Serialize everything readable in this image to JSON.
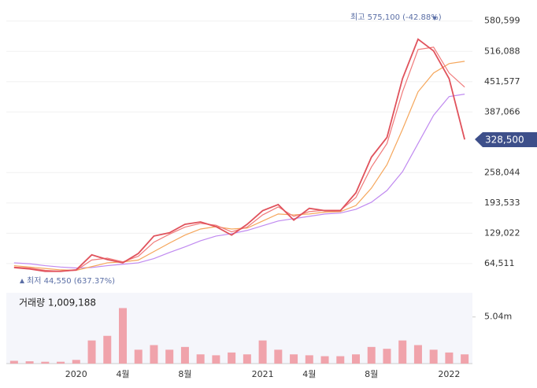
{
  "chart_data": {
    "type": "line",
    "categories": [
      null,
      null,
      null,
      null,
      "2020",
      null,
      null,
      "4월",
      null,
      null,
      null,
      "8월",
      null,
      null,
      null,
      null,
      "2021",
      null,
      null,
      "4월",
      null,
      null,
      null,
      "8월",
      null,
      null,
      null,
      null,
      "2022",
      null
    ],
    "series": [
      {
        "color": "#e0525c",
        "values": [
          56000,
          53000,
          48000,
          48000,
          51000,
          83000,
          73000,
          66000,
          86000,
          123000,
          130000,
          148000,
          153000,
          143000,
          125000,
          148000,
          177000,
          190000,
          157000,
          182000,
          177000,
          177000,
          215000,
          291000,
          333000,
          458000,
          542000,
          517000,
          458000,
          328500
        ]
      },
      {
        "color": "#f07a7a",
        "values": [
          57000,
          55000,
          50000,
          48000,
          50000,
          72000,
          76000,
          68000,
          80000,
          110000,
          127000,
          142000,
          150000,
          146000,
          132000,
          142000,
          168000,
          185000,
          165000,
          175000,
          178000,
          178000,
          205000,
          270000,
          320000,
          430000,
          520000,
          525000,
          470000,
          440000
        ]
      },
      {
        "color": "#f5a65b",
        "values": [
          60000,
          57000,
          54000,
          51000,
          50000,
          58000,
          66000,
          68000,
          72000,
          90000,
          108000,
          125000,
          138000,
          143000,
          138000,
          140000,
          155000,
          170000,
          168000,
          170000,
          174000,
          175000,
          188000,
          225000,
          275000,
          350000,
          430000,
          470000,
          490000,
          495000
        ]
      },
      {
        "color": "#c08af0",
        "values": [
          66000,
          64000,
          60000,
          57000,
          55000,
          56000,
          60000,
          63000,
          66000,
          75000,
          88000,
          100000,
          113000,
          123000,
          128000,
          135000,
          145000,
          155000,
          160000,
          165000,
          170000,
          172000,
          180000,
          195000,
          220000,
          260000,
          320000,
          380000,
          420000,
          425000
        ]
      }
    ],
    "ylim": [
      14000,
      612000
    ],
    "yticks": [
      {
        "value": 64511,
        "label": "64,511"
      },
      {
        "value": 129022,
        "label": "129,022"
      },
      {
        "value": 193533,
        "label": "193,533"
      },
      {
        "value": 258044,
        "label": "258,044"
      },
      {
        "value": 387066,
        "label": "387,066"
      },
      {
        "value": 451577,
        "label": "451,577"
      },
      {
        "value": 516088,
        "label": "516,088"
      },
      {
        "value": 580599,
        "label": "580,599"
      }
    ],
    "grid": true,
    "high_label": "최고 575,100 (-42.88%)",
    "low_label": "최저 44,550 (637.37%)",
    "last_price_label": "328,500",
    "volume": {
      "title": "거래량 1,009,188",
      "color": "#f0a3ab",
      "values": [
        300000,
        250000,
        200000,
        200000,
        400000,
        2500000,
        3000000,
        6000000,
        1500000,
        2000000,
        1500000,
        1800000,
        1000000,
        900000,
        1200000,
        1000000,
        2500000,
        1500000,
        1000000,
        900000,
        800000,
        800000,
        1000000,
        1800000,
        1600000,
        2500000,
        2000000,
        1500000,
        1200000,
        1000000
      ],
      "ylim": [
        0,
        7400000
      ],
      "yticks": [
        {
          "value": 5040000,
          "label": "5.04m"
        }
      ]
    }
  }
}
